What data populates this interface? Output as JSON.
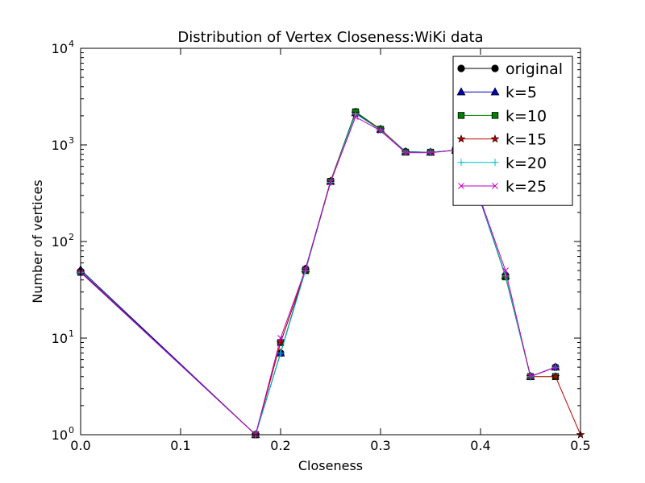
{
  "chart_data": {
    "type": "line",
    "title": "Distribution of Vertex Closeness:WiKi data",
    "xlabel": "Closeness",
    "ylabel": "Number of vertices",
    "xlim": [
      0.0,
      0.5
    ],
    "ylim": [
      1,
      10000
    ],
    "yscale": "log",
    "grid": false,
    "legend_position": "top-right",
    "x_ticks": [
      {
        "value": 0.0,
        "label": "0.0"
      },
      {
        "value": 0.1,
        "label": "0.1"
      },
      {
        "value": 0.2,
        "label": "0.2"
      },
      {
        "value": 0.3,
        "label": "0.3"
      },
      {
        "value": 0.4,
        "label": "0.4"
      },
      {
        "value": 0.5,
        "label": "0.5"
      }
    ],
    "y_ticks": [
      {
        "value": 1,
        "base": "10",
        "exp": "0"
      },
      {
        "value": 10,
        "base": "10",
        "exp": "1"
      },
      {
        "value": 100,
        "base": "10",
        "exp": "2"
      },
      {
        "value": 1000,
        "base": "10",
        "exp": "3"
      },
      {
        "value": 10000,
        "base": "10",
        "exp": "4"
      }
    ],
    "series": [
      {
        "name": "original",
        "color": "#000000",
        "marker": "circle",
        "points": [
          [
            0.0,
            49
          ],
          [
            0.175,
            1
          ],
          [
            0.2,
            7
          ],
          [
            0.225,
            52
          ],
          [
            0.25,
            420
          ],
          [
            0.275,
            2200
          ],
          [
            0.3,
            1450
          ],
          [
            0.325,
            850
          ],
          [
            0.35,
            840
          ],
          [
            0.375,
            880
          ],
          [
            0.4,
            270
          ],
          [
            0.425,
            44
          ],
          [
            0.45,
            4
          ],
          [
            0.475,
            5
          ]
        ]
      },
      {
        "name": "k=5",
        "color": "#0000bf",
        "marker": "triangle",
        "points": [
          [
            0.0,
            51
          ],
          [
            0.175,
            1
          ],
          [
            0.2,
            7
          ],
          [
            0.225,
            52
          ],
          [
            0.25,
            420
          ],
          [
            0.275,
            2150
          ],
          [
            0.3,
            1450
          ],
          [
            0.325,
            850
          ],
          [
            0.35,
            840
          ],
          [
            0.375,
            880
          ],
          [
            0.4,
            260
          ],
          [
            0.425,
            44
          ],
          [
            0.45,
            4
          ],
          [
            0.475,
            5
          ]
        ]
      },
      {
        "name": "k=10",
        "color": "#008000",
        "marker": "square",
        "points": [
          [
            0.0,
            48
          ],
          [
            0.175,
            1
          ],
          [
            0.2,
            9
          ],
          [
            0.225,
            50
          ],
          [
            0.25,
            420
          ],
          [
            0.275,
            2200
          ],
          [
            0.3,
            1450
          ],
          [
            0.325,
            840
          ],
          [
            0.35,
            840
          ],
          [
            0.375,
            880
          ],
          [
            0.4,
            270
          ],
          [
            0.425,
            43
          ],
          [
            0.45,
            4
          ],
          [
            0.475,
            4
          ]
        ]
      },
      {
        "name": "k=15",
        "color": "#bf0000",
        "marker": "star",
        "points": [
          [
            0.0,
            48
          ],
          [
            0.175,
            1
          ],
          [
            0.2,
            9
          ],
          [
            0.225,
            50
          ],
          [
            0.25,
            420
          ],
          [
            0.275,
            2100
          ],
          [
            0.3,
            1450
          ],
          [
            0.325,
            840
          ],
          [
            0.35,
            840
          ],
          [
            0.375,
            880
          ],
          [
            0.4,
            270
          ],
          [
            0.425,
            44
          ],
          [
            0.45,
            4
          ],
          [
            0.475,
            4
          ],
          [
            0.5,
            1
          ]
        ]
      },
      {
        "name": "k=20",
        "color": "#00bfbf",
        "marker": "plus",
        "points": [
          [
            0.0,
            48
          ],
          [
            0.175,
            1
          ],
          [
            0.2,
            7
          ],
          [
            0.225,
            50
          ],
          [
            0.25,
            410
          ],
          [
            0.275,
            2100
          ],
          [
            0.3,
            1420
          ],
          [
            0.325,
            840
          ],
          [
            0.35,
            840
          ],
          [
            0.375,
            880
          ],
          [
            0.4,
            270
          ],
          [
            0.425,
            44
          ],
          [
            0.45,
            4
          ],
          [
            0.475,
            5
          ]
        ]
      },
      {
        "name": "k=25",
        "color": "#bf00bf",
        "marker": "x",
        "points": [
          [
            0.0,
            48
          ],
          [
            0.175,
            1
          ],
          [
            0.2,
            10
          ],
          [
            0.225,
            52
          ],
          [
            0.25,
            410
          ],
          [
            0.275,
            1950
          ],
          [
            0.3,
            1400
          ],
          [
            0.325,
            830
          ],
          [
            0.35,
            830
          ],
          [
            0.375,
            880
          ],
          [
            0.4,
            270
          ],
          [
            0.425,
            50
          ],
          [
            0.45,
            4
          ],
          [
            0.475,
            5
          ]
        ]
      }
    ]
  }
}
